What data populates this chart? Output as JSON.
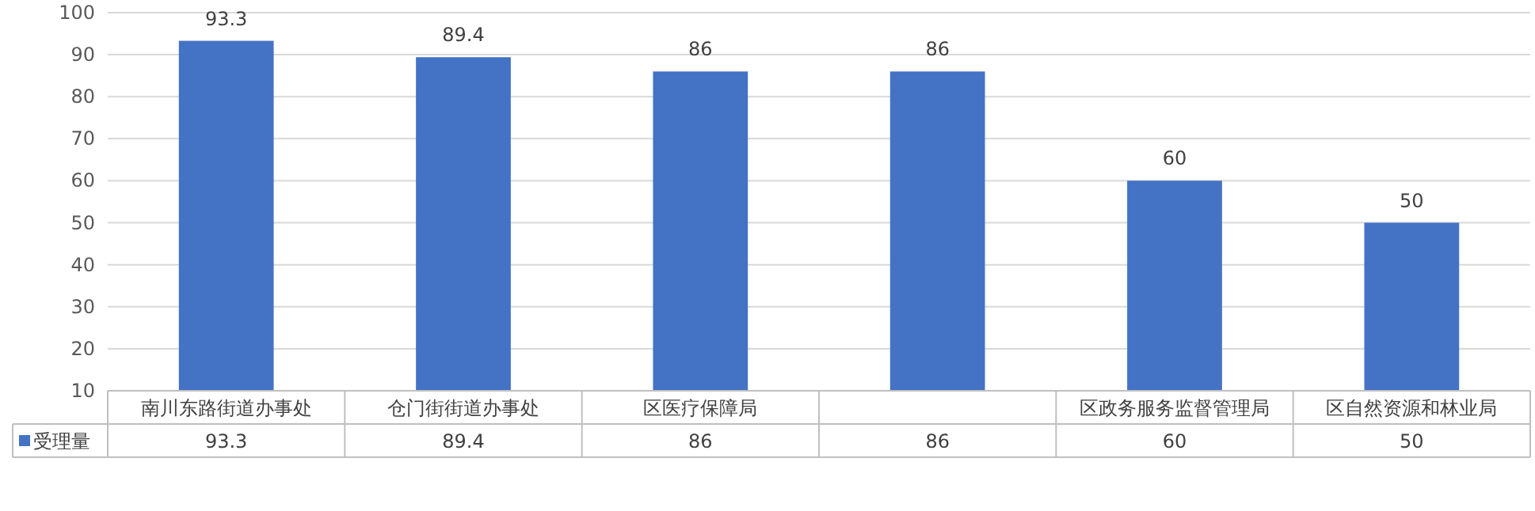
{
  "chart_data": {
    "type": "bar",
    "categories": [
      "南川东路街道办事处",
      "仓门街街道办事处",
      "区医疗保障局",
      null,
      "区政务服务监督管理局",
      "区自然资源和林业局"
    ],
    "series": [
      {
        "name": "受理量",
        "color": "#4472c4",
        "values": [
          93.3,
          89.4,
          86,
          86,
          60,
          50
        ],
        "value_labels": [
          "93.3",
          "89.4",
          "86",
          "86",
          "60",
          "50"
        ]
      }
    ],
    "ylim": [
      10,
      100
    ],
    "yticks": [
      10,
      20,
      30,
      40,
      50,
      60,
      70,
      80,
      90,
      100
    ],
    "annotations": [
      "93.3",
      "89.4",
      "86",
      "86",
      "60",
      "50"
    ],
    "grid": "y",
    "data_labels": true,
    "legend": "bottom left"
  }
}
